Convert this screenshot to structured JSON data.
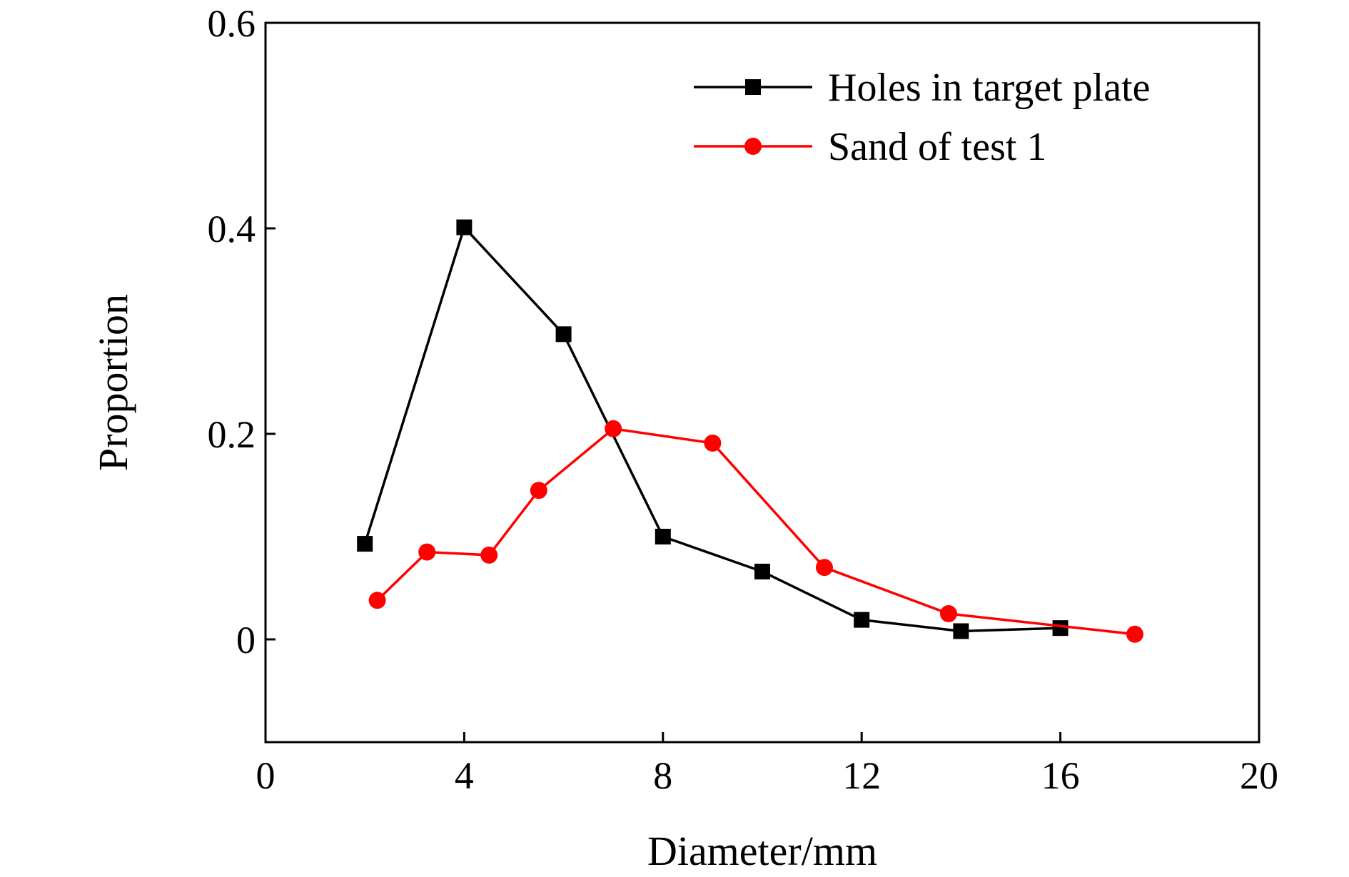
{
  "chart_data": {
    "type": "line",
    "title": "",
    "xlabel": "Diameter/mm",
    "ylabel": "Proportion",
    "xlim": [
      0,
      20
    ],
    "ylim": [
      -0.1,
      0.6
    ],
    "x_ticks": [
      0,
      4,
      8,
      12,
      16,
      20
    ],
    "x_tick_labels": [
      "0",
      "4",
      "8",
      "12",
      "16",
      "20"
    ],
    "y_ticks": [
      0,
      0.2,
      0.4,
      0.6
    ],
    "y_tick_labels": [
      "0",
      "0.2",
      "0.4",
      "0.6"
    ],
    "grid": false,
    "legend_position": "top-right",
    "series": [
      {
        "name": "Holes in target plate",
        "color": "#000000",
        "marker": "square",
        "x": [
          2,
          4,
          6,
          8,
          10,
          12,
          14,
          16
        ],
        "y": [
          0.093,
          0.401,
          0.297,
          0.1,
          0.066,
          0.019,
          0.008,
          0.011
        ]
      },
      {
        "name": "Sand of test 1",
        "color": "#ff0000",
        "marker": "circle",
        "x": [
          2.25,
          3.25,
          4.5,
          5.5,
          7,
          9,
          11.25,
          13.75,
          17.5
        ],
        "y": [
          0.038,
          0.085,
          0.082,
          0.145,
          0.205,
          0.191,
          0.07,
          0.025,
          0.005
        ]
      }
    ]
  }
}
